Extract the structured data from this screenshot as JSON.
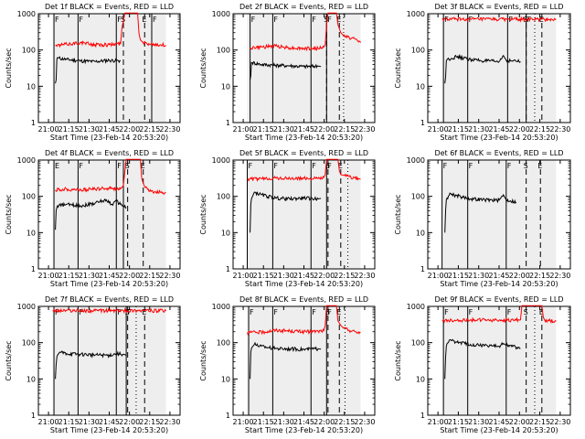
{
  "x_tick_labels": [
    "21:00",
    "21:15",
    "21:30",
    "21:45",
    "22:00",
    "22:15",
    "22:30"
  ],
  "y_tick_labels": [
    "1",
    "10",
    "100",
    "1000"
  ],
  "xlabel": "Start Time (23-Feb-14 20:53:20)",
  "ylabel": "Counts/sec",
  "colors": {
    "events": "#000000",
    "lld": "#ff0000"
  },
  "chart_data": [
    {
      "type": "line",
      "title": "Det 1f BLACK = Events, RED = LLD",
      "xlim": [
        0,
        100
      ],
      "ylim": [
        1,
        1000
      ],
      "yscale": "log",
      "x_start": 10,
      "x_end": 90,
      "solid_markers": [
        {
          "x": 11,
          "label": "F"
        },
        {
          "x": 28,
          "label": "F"
        },
        {
          "x": 55,
          "label": "F"
        },
        {
          "x": 80,
          "label": "F"
        }
      ],
      "dashed_markers": [
        {
          "x": 60,
          "label": "S"
        },
        {
          "x": 75,
          "label": "E"
        }
      ],
      "dotted_markers": [],
      "series": [
        {
          "role": "events",
          "x": [
            12,
            12.5,
            13,
            13.5,
            14,
            20,
            30,
            40,
            50,
            58
          ],
          "y": [
            12,
            15,
            55,
            62,
            60,
            55,
            50,
            48,
            52,
            50
          ]
        },
        {
          "role": "lld",
          "x": [
            12,
            20,
            30,
            40,
            50,
            58,
            59,
            61,
            62,
            63,
            64,
            67,
            70,
            71,
            72,
            74,
            78,
            82,
            86,
            90
          ],
          "y": [
            130,
            145,
            160,
            140,
            140,
            150,
            400,
            1050,
            1050,
            1050,
            1050,
            1050,
            1050,
            280,
            190,
            160,
            150,
            145,
            140,
            135
          ]
        }
      ]
    },
    {
      "type": "line",
      "title": "Det 2f BLACK = Events, RED = LLD",
      "xlim": [
        0,
        100
      ],
      "ylim": [
        1,
        1000
      ],
      "yscale": "log",
      "x_start": 10,
      "x_end": 90,
      "solid_markers": [
        {
          "x": 12,
          "label": "F"
        },
        {
          "x": 28,
          "label": "F"
        },
        {
          "x": 55,
          "label": "F"
        },
        {
          "x": 66,
          "label": "F"
        }
      ],
      "dashed_markers": [
        {
          "x": 66,
          "label": "S"
        },
        {
          "x": 75,
          "label": "E"
        }
      ],
      "dotted_markers": [
        {
          "x": 78,
          "label": ""
        }
      ],
      "series": [
        {
          "role": "events",
          "x": [
            12,
            12.5,
            13,
            13.5,
            20,
            30,
            40,
            50,
            60,
            62
          ],
          "y": [
            15,
            20,
            45,
            45,
            40,
            38,
            37,
            35,
            36,
            35
          ]
        },
        {
          "role": "lld",
          "x": [
            12,
            20,
            30,
            40,
            50,
            60,
            64,
            65,
            66,
            67,
            70,
            72,
            73,
            74,
            76,
            78,
            82,
            86,
            90
          ],
          "y": [
            115,
            120,
            130,
            115,
            110,
            110,
            120,
            140,
            500,
            1050,
            1050,
            1050,
            1050,
            500,
            300,
            250,
            220,
            200,
            160
          ]
        }
      ]
    },
    {
      "type": "line",
      "title": "Det 3f BLACK = Events, RED = LLD",
      "xlim": [
        0,
        100
      ],
      "ylim": [
        1,
        1000
      ],
      "yscale": "log",
      "x_start": 10,
      "x_end": 90,
      "solid_markers": [
        {
          "x": 11,
          "label": "F"
        },
        {
          "x": 28,
          "label": "F"
        },
        {
          "x": 56,
          "label": "F"
        },
        {
          "x": 69,
          "label": "F"
        }
      ],
      "dashed_markers": [
        {
          "x": 69,
          "label": "S"
        },
        {
          "x": 80,
          "label": "E"
        }
      ],
      "dotted_markers": [
        {
          "x": 75,
          "label": ""
        }
      ],
      "series": [
        {
          "role": "events",
          "x": [
            12,
            12.5,
            13,
            13.5,
            20,
            30,
            40,
            50,
            53,
            55,
            60,
            65
          ],
          "y": [
            12,
            18,
            50,
            55,
            65,
            55,
            50,
            48,
            70,
            52,
            50,
            48
          ]
        },
        {
          "role": "lld",
          "x": [
            10,
            20,
            30,
            40,
            50,
            60,
            70,
            80,
            90
          ],
          "y": [
            700,
            710,
            700,
            705,
            700,
            710,
            700,
            705,
            700
          ]
        }
      ]
    },
    {
      "type": "line",
      "title": "Det 4f BLACK = Events, RED = LLD",
      "xlim": [
        0,
        100
      ],
      "ylim": [
        1,
        1000
      ],
      "yscale": "log",
      "x_start": 10,
      "x_end": 90,
      "solid_markers": [
        {
          "x": 11,
          "label": "E"
        },
        {
          "x": 28,
          "label": "F"
        },
        {
          "x": 55,
          "label": "F"
        },
        {
          "x": 60,
          "label": "F"
        }
      ],
      "dashed_markers": [
        {
          "x": 63,
          "label": "S"
        },
        {
          "x": 74,
          "label": "E"
        }
      ],
      "dotted_markers": [],
      "series": [
        {
          "role": "events",
          "x": [
            12,
            12.5,
            13,
            13.5,
            20,
            30,
            40,
            45,
            48,
            52,
            55,
            58,
            62
          ],
          "y": [
            12,
            40,
            50,
            55,
            60,
            55,
            65,
            75,
            80,
            60,
            75,
            60,
            50
          ]
        },
        {
          "role": "lld",
          "x": [
            12,
            20,
            30,
            40,
            50,
            58,
            60,
            61,
            62,
            63,
            66,
            70,
            72,
            73,
            75,
            78,
            82,
            86,
            90
          ],
          "y": [
            150,
            160,
            150,
            160,
            170,
            160,
            200,
            500,
            1050,
            1050,
            1050,
            1050,
            1050,
            300,
            180,
            140,
            135,
            130,
            125
          ]
        }
      ]
    },
    {
      "type": "line",
      "title": "Det 5f BLACK = Events, RED = LLD",
      "xlim": [
        0,
        100
      ],
      "ylim": [
        1,
        1000
      ],
      "yscale": "log",
      "x_start": 10,
      "x_end": 90,
      "solid_markers": [
        {
          "x": 10,
          "label": "F"
        },
        {
          "x": 28,
          "label": "F"
        },
        {
          "x": 55,
          "label": "F"
        },
        {
          "x": 66,
          "label": "F"
        }
      ],
      "dashed_markers": [
        {
          "x": 67,
          "label": "S"
        },
        {
          "x": 76,
          "label": "E"
        }
      ],
      "dotted_markers": [
        {
          "x": 81,
          "label": ""
        }
      ],
      "series": [
        {
          "role": "events",
          "x": [
            12,
            12.5,
            13,
            13.5,
            15,
            20,
            30,
            40,
            50,
            60,
            62
          ],
          "y": [
            10,
            60,
            85,
            95,
            130,
            110,
            90,
            85,
            90,
            85,
            88
          ]
        },
        {
          "role": "lld",
          "x": [
            10,
            20,
            30,
            40,
            50,
            60,
            64,
            65,
            66,
            70,
            74,
            75,
            76,
            78,
            82,
            86,
            90
          ],
          "y": [
            300,
            305,
            320,
            310,
            315,
            310,
            330,
            400,
            1050,
            1050,
            1050,
            500,
            400,
            380,
            350,
            320,
            300
          ]
        }
      ]
    },
    {
      "type": "line",
      "title": "Det 6f BLACK = Events, RED = LLD",
      "xlim": [
        0,
        100
      ],
      "ylim": [
        1,
        1000
      ],
      "yscale": "log",
      "x_start": 10,
      "x_end": 90,
      "solid_markers": [
        {
          "x": 10,
          "label": "F"
        },
        {
          "x": 28,
          "label": "F"
        },
        {
          "x": 55,
          "label": "F"
        }
      ],
      "dashed_markers": [
        {
          "x": 69,
          "label": "S"
        },
        {
          "x": 79,
          "label": "E"
        }
      ],
      "dotted_markers": [],
      "series": [
        {
          "role": "events",
          "x": [
            12,
            12.5,
            13,
            13.5,
            16,
            20,
            30,
            40,
            50,
            53,
            55,
            58,
            62
          ],
          "y": [
            10,
            40,
            80,
            90,
            120,
            105,
            85,
            80,
            78,
            110,
            80,
            75,
            70
          ]
        }
      ]
    },
    {
      "type": "line",
      "title": "Det 7f BLACK = Events, RED = LLD",
      "xlim": [
        0,
        100
      ],
      "ylim": [
        1,
        1000
      ],
      "yscale": "log",
      "x_start": 10,
      "x_end": 90,
      "solid_markers": [
        {
          "x": 11,
          "label": "F"
        },
        {
          "x": 28,
          "label": "F"
        },
        {
          "x": 55,
          "label": "F"
        },
        {
          "x": 62,
          "label": "F"
        }
      ],
      "dashed_markers": [
        {
          "x": 63,
          "label": "S"
        },
        {
          "x": 75,
          "label": "E"
        }
      ],
      "dotted_markers": [
        {
          "x": 69,
          "label": ""
        }
      ],
      "series": [
        {
          "role": "events",
          "x": [
            12,
            12.5,
            13,
            13.5,
            15,
            20,
            30,
            40,
            50,
            55,
            60,
            62
          ],
          "y": [
            10,
            25,
            40,
            45,
            55,
            50,
            48,
            46,
            45,
            50,
            48,
            45
          ]
        },
        {
          "role": "lld",
          "x": [
            10,
            20,
            30,
            40,
            50,
            60,
            70,
            80,
            90
          ],
          "y": [
            750,
            780,
            760,
            760,
            770,
            760,
            780,
            760,
            750
          ]
        }
      ]
    },
    {
      "type": "line",
      "title": "Det 8f BLACK = Events, RED = LLD",
      "xlim": [
        0,
        100
      ],
      "ylim": [
        1,
        1000
      ],
      "yscale": "log",
      "x_start": 10,
      "x_end": 90,
      "solid_markers": [
        {
          "x": 11,
          "label": "F"
        },
        {
          "x": 28,
          "label": "F"
        },
        {
          "x": 55,
          "label": "F"
        },
        {
          "x": 66,
          "label": "F"
        }
      ],
      "dashed_markers": [
        {
          "x": 67,
          "label": "S"
        },
        {
          "x": 75,
          "label": "E"
        }
      ],
      "dotted_markers": [
        {
          "x": 79,
          "label": ""
        }
      ],
      "series": [
        {
          "role": "events",
          "x": [
            12,
            12.5,
            13,
            13.5,
            15,
            20,
            30,
            40,
            50,
            60,
            62
          ],
          "y": [
            10,
            55,
            70,
            75,
            90,
            80,
            70,
            68,
            65,
            68,
            66
          ]
        },
        {
          "role": "lld",
          "x": [
            10,
            20,
            30,
            40,
            50,
            60,
            64,
            65,
            66,
            70,
            73,
            74,
            76,
            78,
            82,
            86,
            90
          ],
          "y": [
            190,
            195,
            220,
            210,
            200,
            205,
            215,
            300,
            1050,
            1050,
            1050,
            400,
            300,
            250,
            220,
            200,
            190
          ]
        }
      ]
    },
    {
      "type": "line",
      "title": "Det 9f BLACK = Events, RED = LLD",
      "xlim": [
        0,
        100
      ],
      "ylim": [
        1,
        1000
      ],
      "yscale": "log",
      "x_start": 10,
      "x_end": 90,
      "solid_markers": [
        {
          "x": 11,
          "label": "F"
        },
        {
          "x": 28,
          "label": "F"
        },
        {
          "x": 55,
          "label": "F"
        }
      ],
      "dashed_markers": [
        {
          "x": 69,
          "label": "S"
        },
        {
          "x": 80,
          "label": "E"
        }
      ],
      "dotted_markers": [
        {
          "x": 75,
          "label": ""
        }
      ],
      "series": [
        {
          "role": "events",
          "x": [
            12,
            12.5,
            13,
            13.5,
            16,
            20,
            30,
            40,
            50,
            53,
            55,
            60,
            65
          ],
          "y": [
            10,
            40,
            80,
            95,
            120,
            105,
            90,
            85,
            80,
            95,
            85,
            80,
            70
          ]
        },
        {
          "role": "lld",
          "x": [
            10,
            20,
            30,
            40,
            50,
            60,
            65,
            66,
            67,
            68,
            69,
            70,
            72,
            76,
            80,
            81,
            82,
            86,
            90
          ],
          "y": [
            400,
            410,
            430,
            420,
            415,
            420,
            425,
            1050,
            1050,
            1050,
            1050,
            1050,
            1050,
            1050,
            1050,
            500,
            420,
            400,
            390
          ]
        }
      ]
    }
  ]
}
